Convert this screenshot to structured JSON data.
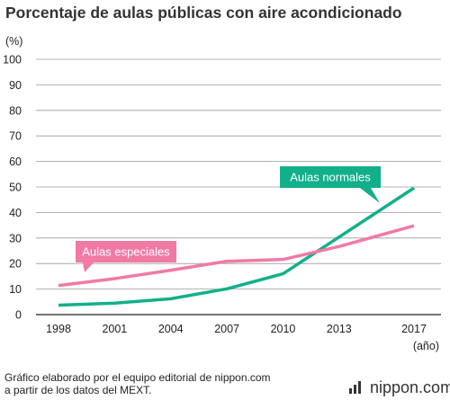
{
  "title": "Porcentaje de aulas públicas con aire acondicionado",
  "footer": {
    "line1": "Gráfico elaborado por el equipo editorial de nippon.com",
    "line2": "a partir de los datos del MEXT."
  },
  "brand": "nippon.com",
  "icons": {
    "brand_mark": "nippon-logo-icon"
  },
  "chart_data": {
    "type": "line",
    "title": "Porcentaje de aulas públicas con aire acondicionado",
    "y_unit_label": "(%)",
    "x_unit_label": "(año)",
    "x": [
      1998,
      2001,
      2004,
      2007,
      2010,
      2013,
      2017
    ],
    "x_tick_labels": [
      "1998",
      "2001",
      "2004",
      "2007",
      "2010",
      "2013",
      "2017"
    ],
    "ylim": [
      0,
      100
    ],
    "y_ticks": [
      0,
      10,
      20,
      30,
      40,
      50,
      60,
      70,
      80,
      90,
      100
    ],
    "grid": true,
    "series": [
      {
        "name": "Aulas normales",
        "color": "#12b08a",
        "points": [
          [
            1998,
            3.7
          ],
          [
            2001,
            4.5
          ],
          [
            2004,
            6.2
          ],
          [
            2007,
            10.1
          ],
          [
            2010,
            16.0
          ],
          [
            2017,
            49.6
          ]
        ]
      },
      {
        "name": "Aulas especiales",
        "color": "#f07aa5",
        "points": [
          [
            1998,
            11.4
          ],
          [
            2001,
            14.1
          ],
          [
            2004,
            17.4
          ],
          [
            2007,
            20.9
          ],
          [
            2010,
            21.6
          ],
          [
            2013,
            26.7
          ],
          [
            2017,
            34.8
          ]
        ]
      }
    ]
  }
}
